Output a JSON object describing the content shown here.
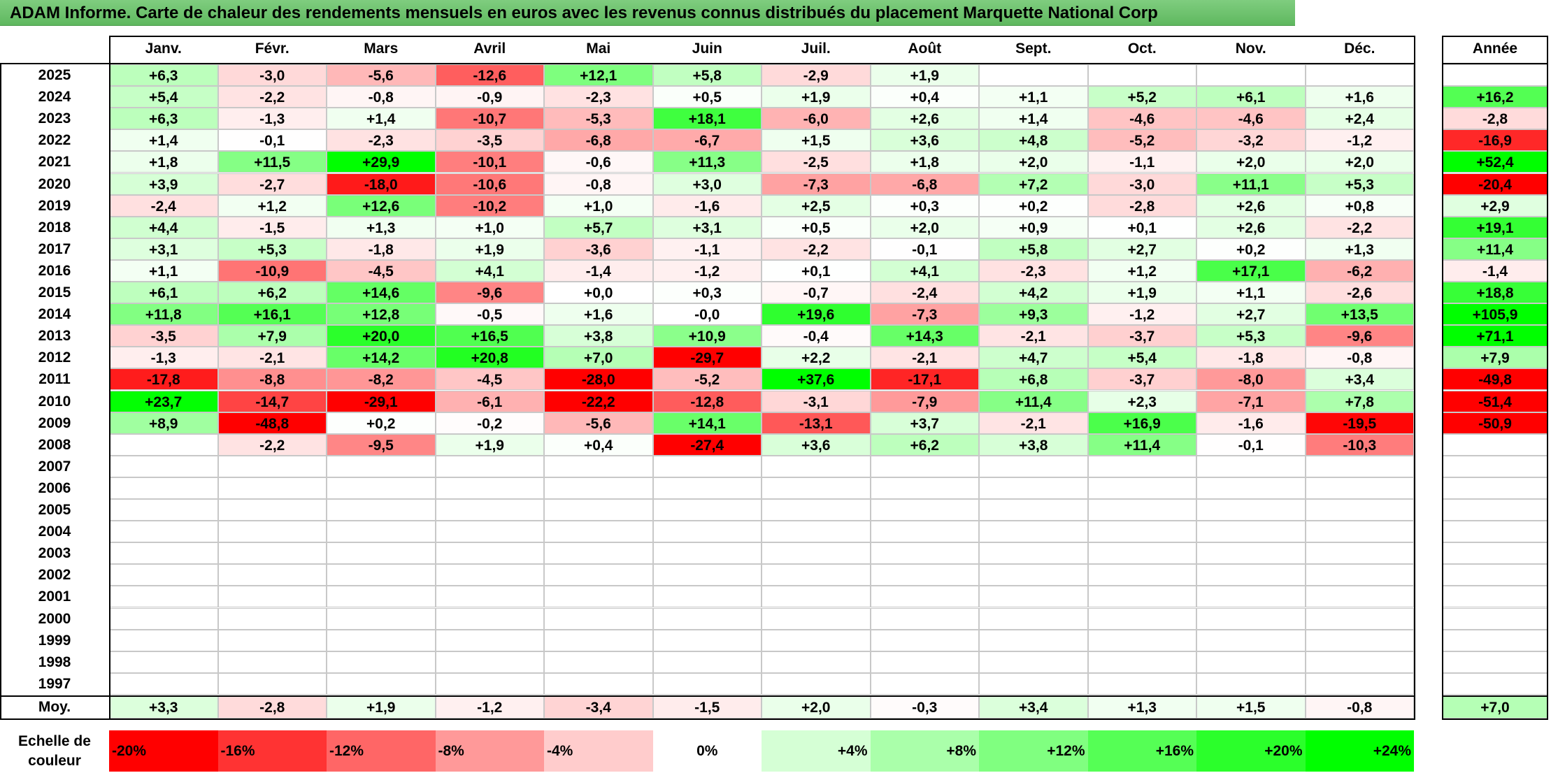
{
  "title": "ADAM Informe. Carte de chaleur des rendements mensuels en euros avec les revenus connus distribués du placement Marquette National Corp",
  "colors": {
    "title_bg": "#6ac26a",
    "negative_max": "#ff0000",
    "positive_max": "#00ff00",
    "zero": "#ffffff"
  },
  "chart_data": {
    "type": "heatmap",
    "title": "ADAM Informe. Carte de chaleur des rendements mensuels en euros avec les revenus connus distribués du placement Marquette National Corp",
    "months": [
      "Janv.",
      "Févr.",
      "Mars",
      "Avril",
      "Mai",
      "Juin",
      "Juil.",
      "Août",
      "Sept.",
      "Oct.",
      "Nov.",
      "Déc."
    ],
    "year_label": "Année",
    "rows": [
      {
        "year": "2025",
        "values": [
          "+6,3",
          "-3,0",
          "-5,6",
          "-12,6",
          "+12,1",
          "+5,8",
          "-2,9",
          "+1,9",
          "",
          "",
          "",
          ""
        ],
        "annual": ""
      },
      {
        "year": "2024",
        "values": [
          "+5,4",
          "-2,2",
          "-0,8",
          "-0,9",
          "-2,3",
          "+0,5",
          "+1,9",
          "+0,4",
          "+1,1",
          "+5,2",
          "+6,1",
          "+1,6"
        ],
        "annual": "+16,2"
      },
      {
        "year": "2023",
        "values": [
          "+6,3",
          "-1,3",
          "+1,4",
          "-10,7",
          "-5,3",
          "+18,1",
          "-6,0",
          "+2,6",
          "+1,4",
          "-4,6",
          "-4,6",
          "+2,4"
        ],
        "annual": "-2,8"
      },
      {
        "year": "2022",
        "values": [
          "+1,4",
          "-0,1",
          "-2,3",
          "-3,5",
          "-6,8",
          "-6,7",
          "+1,5",
          "+3,6",
          "+4,8",
          "-5,2",
          "-3,2",
          "-1,2"
        ],
        "annual": "-16,9"
      },
      {
        "year": "2021",
        "values": [
          "+1,8",
          "+11,5",
          "+29,9",
          "-10,1",
          "-0,6",
          "+11,3",
          "-2,5",
          "+1,8",
          "+2,0",
          "-1,1",
          "+2,0",
          "+2,0"
        ],
        "annual": "+52,4"
      },
      {
        "year": "2020",
        "values": [
          "+3,9",
          "-2,7",
          "-18,0",
          "-10,6",
          "-0,8",
          "+3,0",
          "-7,3",
          "-6,8",
          "+7,2",
          "-3,0",
          "+11,1",
          "+5,3"
        ],
        "annual": "-20,4"
      },
      {
        "year": "2019",
        "values": [
          "-2,4",
          "+1,2",
          "+12,6",
          "-10,2",
          "+1,0",
          "-1,6",
          "+2,5",
          "+0,3",
          "+0,2",
          "-2,8",
          "+2,6",
          "+0,8"
        ],
        "annual": "+2,9"
      },
      {
        "year": "2018",
        "values": [
          "+4,4",
          "-1,5",
          "+1,3",
          "+1,0",
          "+5,7",
          "+3,1",
          "+0,5",
          "+2,0",
          "+0,9",
          "+0,1",
          "+2,6",
          "-2,2"
        ],
        "annual": "+19,1"
      },
      {
        "year": "2017",
        "values": [
          "+3,1",
          "+5,3",
          "-1,8",
          "+1,9",
          "-3,6",
          "-1,1",
          "-2,2",
          "-0,1",
          "+5,8",
          "+2,7",
          "+0,2",
          "+1,3"
        ],
        "annual": "+11,4"
      },
      {
        "year": "2016",
        "values": [
          "+1,1",
          "-10,9",
          "-4,5",
          "+4,1",
          "-1,4",
          "-1,2",
          "+0,1",
          "+4,1",
          "-2,3",
          "+1,2",
          "+17,1",
          "-6,2"
        ],
        "annual": "-1,4"
      },
      {
        "year": "2015",
        "values": [
          "+6,1",
          "+6,2",
          "+14,6",
          "-9,6",
          "+0,0",
          "+0,3",
          "-0,7",
          "-2,4",
          "+4,2",
          "+1,9",
          "+1,1",
          "-2,6"
        ],
        "annual": "+18,8"
      },
      {
        "year": "2014",
        "values": [
          "+11,8",
          "+16,1",
          "+12,8",
          "-0,5",
          "+1,6",
          "-0,0",
          "+19,6",
          "-7,3",
          "+9,3",
          "-1,2",
          "+2,7",
          "+13,5"
        ],
        "annual": "+105,9"
      },
      {
        "year": "2013",
        "values": [
          "-3,5",
          "+7,9",
          "+20,0",
          "+16,5",
          "+3,8",
          "+10,9",
          "-0,4",
          "+14,3",
          "-2,1",
          "-3,7",
          "+5,3",
          "-9,6"
        ],
        "annual": "+71,1"
      },
      {
        "year": "2012",
        "values": [
          "-1,3",
          "-2,1",
          "+14,2",
          "+20,8",
          "+7,0",
          "-29,7",
          "+2,2",
          "-2,1",
          "+4,7",
          "+5,4",
          "-1,8",
          "-0,8"
        ],
        "annual": "+7,9"
      },
      {
        "year": "2011",
        "values": [
          "-17,8",
          "-8,8",
          "-8,2",
          "-4,5",
          "-28,0",
          "-5,2",
          "+37,6",
          "-17,1",
          "+6,8",
          "-3,7",
          "-8,0",
          "+3,4"
        ],
        "annual": "-49,8"
      },
      {
        "year": "2010",
        "values": [
          "+23,7",
          "-14,7",
          "-29,1",
          "-6,1",
          "-22,2",
          "-12,8",
          "-3,1",
          "-7,9",
          "+11,4",
          "+2,3",
          "-7,1",
          "+7,8"
        ],
        "annual": "-51,4"
      },
      {
        "year": "2009",
        "values": [
          "+8,9",
          "-48,8",
          "+0,2",
          "-0,2",
          "-5,6",
          "+14,1",
          "-13,1",
          "+3,7",
          "-2,1",
          "+16,9",
          "-1,6",
          "-19,5"
        ],
        "annual": "-50,9"
      },
      {
        "year": "2008",
        "values": [
          "",
          "-2,2",
          "-9,5",
          "+1,9",
          "+0,4",
          "-27,4",
          "+3,6",
          "+6,2",
          "+3,8",
          "+11,4",
          "-0,1",
          "-10,3"
        ],
        "annual": ""
      },
      {
        "year": "2007",
        "values": [
          "",
          "",
          "",
          "",
          "",
          "",
          "",
          "",
          "",
          "",
          "",
          ""
        ],
        "annual": ""
      },
      {
        "year": "2006",
        "values": [
          "",
          "",
          "",
          "",
          "",
          "",
          "",
          "",
          "",
          "",
          "",
          ""
        ],
        "annual": ""
      },
      {
        "year": "2005",
        "values": [
          "",
          "",
          "",
          "",
          "",
          "",
          "",
          "",
          "",
          "",
          "",
          ""
        ],
        "annual": ""
      },
      {
        "year": "2004",
        "values": [
          "",
          "",
          "",
          "",
          "",
          "",
          "",
          "",
          "",
          "",
          "",
          ""
        ],
        "annual": ""
      },
      {
        "year": "2003",
        "values": [
          "",
          "",
          "",
          "",
          "",
          "",
          "",
          "",
          "",
          "",
          "",
          ""
        ],
        "annual": ""
      },
      {
        "year": "2002",
        "values": [
          "",
          "",
          "",
          "",
          "",
          "",
          "",
          "",
          "",
          "",
          "",
          ""
        ],
        "annual": ""
      },
      {
        "year": "2001",
        "values": [
          "",
          "",
          "",
          "",
          "",
          "",
          "",
          "",
          "",
          "",
          "",
          ""
        ],
        "annual": ""
      },
      {
        "year": "2000",
        "values": [
          "",
          "",
          "",
          "",
          "",
          "",
          "",
          "",
          "",
          "",
          "",
          ""
        ],
        "annual": ""
      },
      {
        "year": "1999",
        "values": [
          "",
          "",
          "",
          "",
          "",
          "",
          "",
          "",
          "",
          "",
          "",
          ""
        ],
        "annual": ""
      },
      {
        "year": "1998",
        "values": [
          "",
          "",
          "",
          "",
          "",
          "",
          "",
          "",
          "",
          "",
          "",
          ""
        ],
        "annual": ""
      },
      {
        "year": "1997",
        "values": [
          "",
          "",
          "",
          "",
          "",
          "",
          "",
          "",
          "",
          "",
          "",
          ""
        ],
        "annual": ""
      }
    ],
    "average": {
      "label": "Moy.",
      "values": [
        "+3,3",
        "-2,8",
        "+1,9",
        "-1,2",
        "-3,4",
        "-1,5",
        "+2,0",
        "-0,3",
        "+3,4",
        "+1,3",
        "+1,5",
        "-0,8"
      ],
      "annual": "+7,0"
    },
    "scale": {
      "label": "Echelle de couleur",
      "labels": [
        "-20%",
        "-16%",
        "-12%",
        "-8%",
        "-4%",
        "0%",
        "+4%",
        "+8%",
        "+12%",
        "+16%",
        "+20%",
        "+24%"
      ],
      "values": [
        -20,
        -16,
        -12,
        -8,
        -4,
        0,
        4,
        8,
        12,
        16,
        20,
        24
      ]
    }
  }
}
